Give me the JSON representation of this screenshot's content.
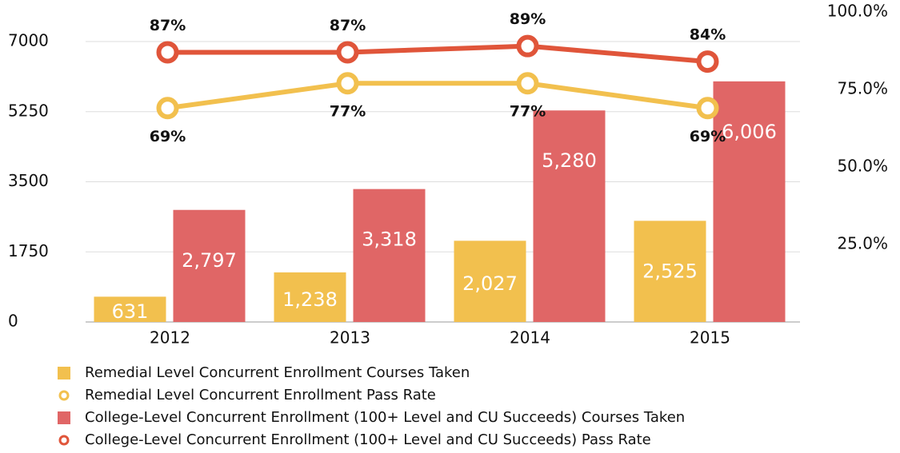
{
  "chart_data": {
    "type": "combo",
    "categories": [
      "2012",
      "2013",
      "2014",
      "2015"
    ],
    "series": [
      {
        "name": "Remedial Level Concurrent Enrollment Courses Taken",
        "type": "bar",
        "color": "#f2c04e",
        "values": [
          631,
          1238,
          2027,
          2525
        ],
        "value_labels": [
          "631",
          "1,238",
          "2,027",
          "2,525"
        ]
      },
      {
        "name": "Remedial Level Concurrent Enrollment Pass Rate",
        "type": "line",
        "axis": "y2",
        "color": "#f2c04e",
        "values": [
          69,
          77,
          77,
          69
        ],
        "value_labels": [
          "69%",
          "77%",
          "77%",
          "69%"
        ]
      },
      {
        "name": "College-Level Concurrent Enrollment (100+ Level and CU Succeeds) Courses Taken",
        "type": "bar",
        "color": "#e06666",
        "values": [
          2797,
          3318,
          5280,
          6006
        ],
        "value_labels": [
          "2,797",
          "3,318",
          "5,280",
          "6,006"
        ]
      },
      {
        "name": "College-Level Concurrent Enrollment (100+ Level and CU Succeeds) Pass Rate",
        "type": "line",
        "axis": "y2",
        "color": "#e0553a",
        "values": [
          87,
          87,
          89,
          84
        ],
        "value_labels": [
          "87%",
          "87%",
          "89%",
          "84%"
        ]
      }
    ],
    "ylim": [
      0,
      7000
    ],
    "yticks": [
      0,
      1750,
      3500,
      5250,
      7000
    ],
    "y2lim": [
      0,
      100
    ],
    "y2ticks": [
      {
        "value": 25,
        "label": "25.0%"
      },
      {
        "value": 50,
        "label": "50.0%"
      },
      {
        "value": 75,
        "label": "75.0%"
      },
      {
        "value": 100,
        "label": "100.0%"
      }
    ],
    "grid": true
  }
}
